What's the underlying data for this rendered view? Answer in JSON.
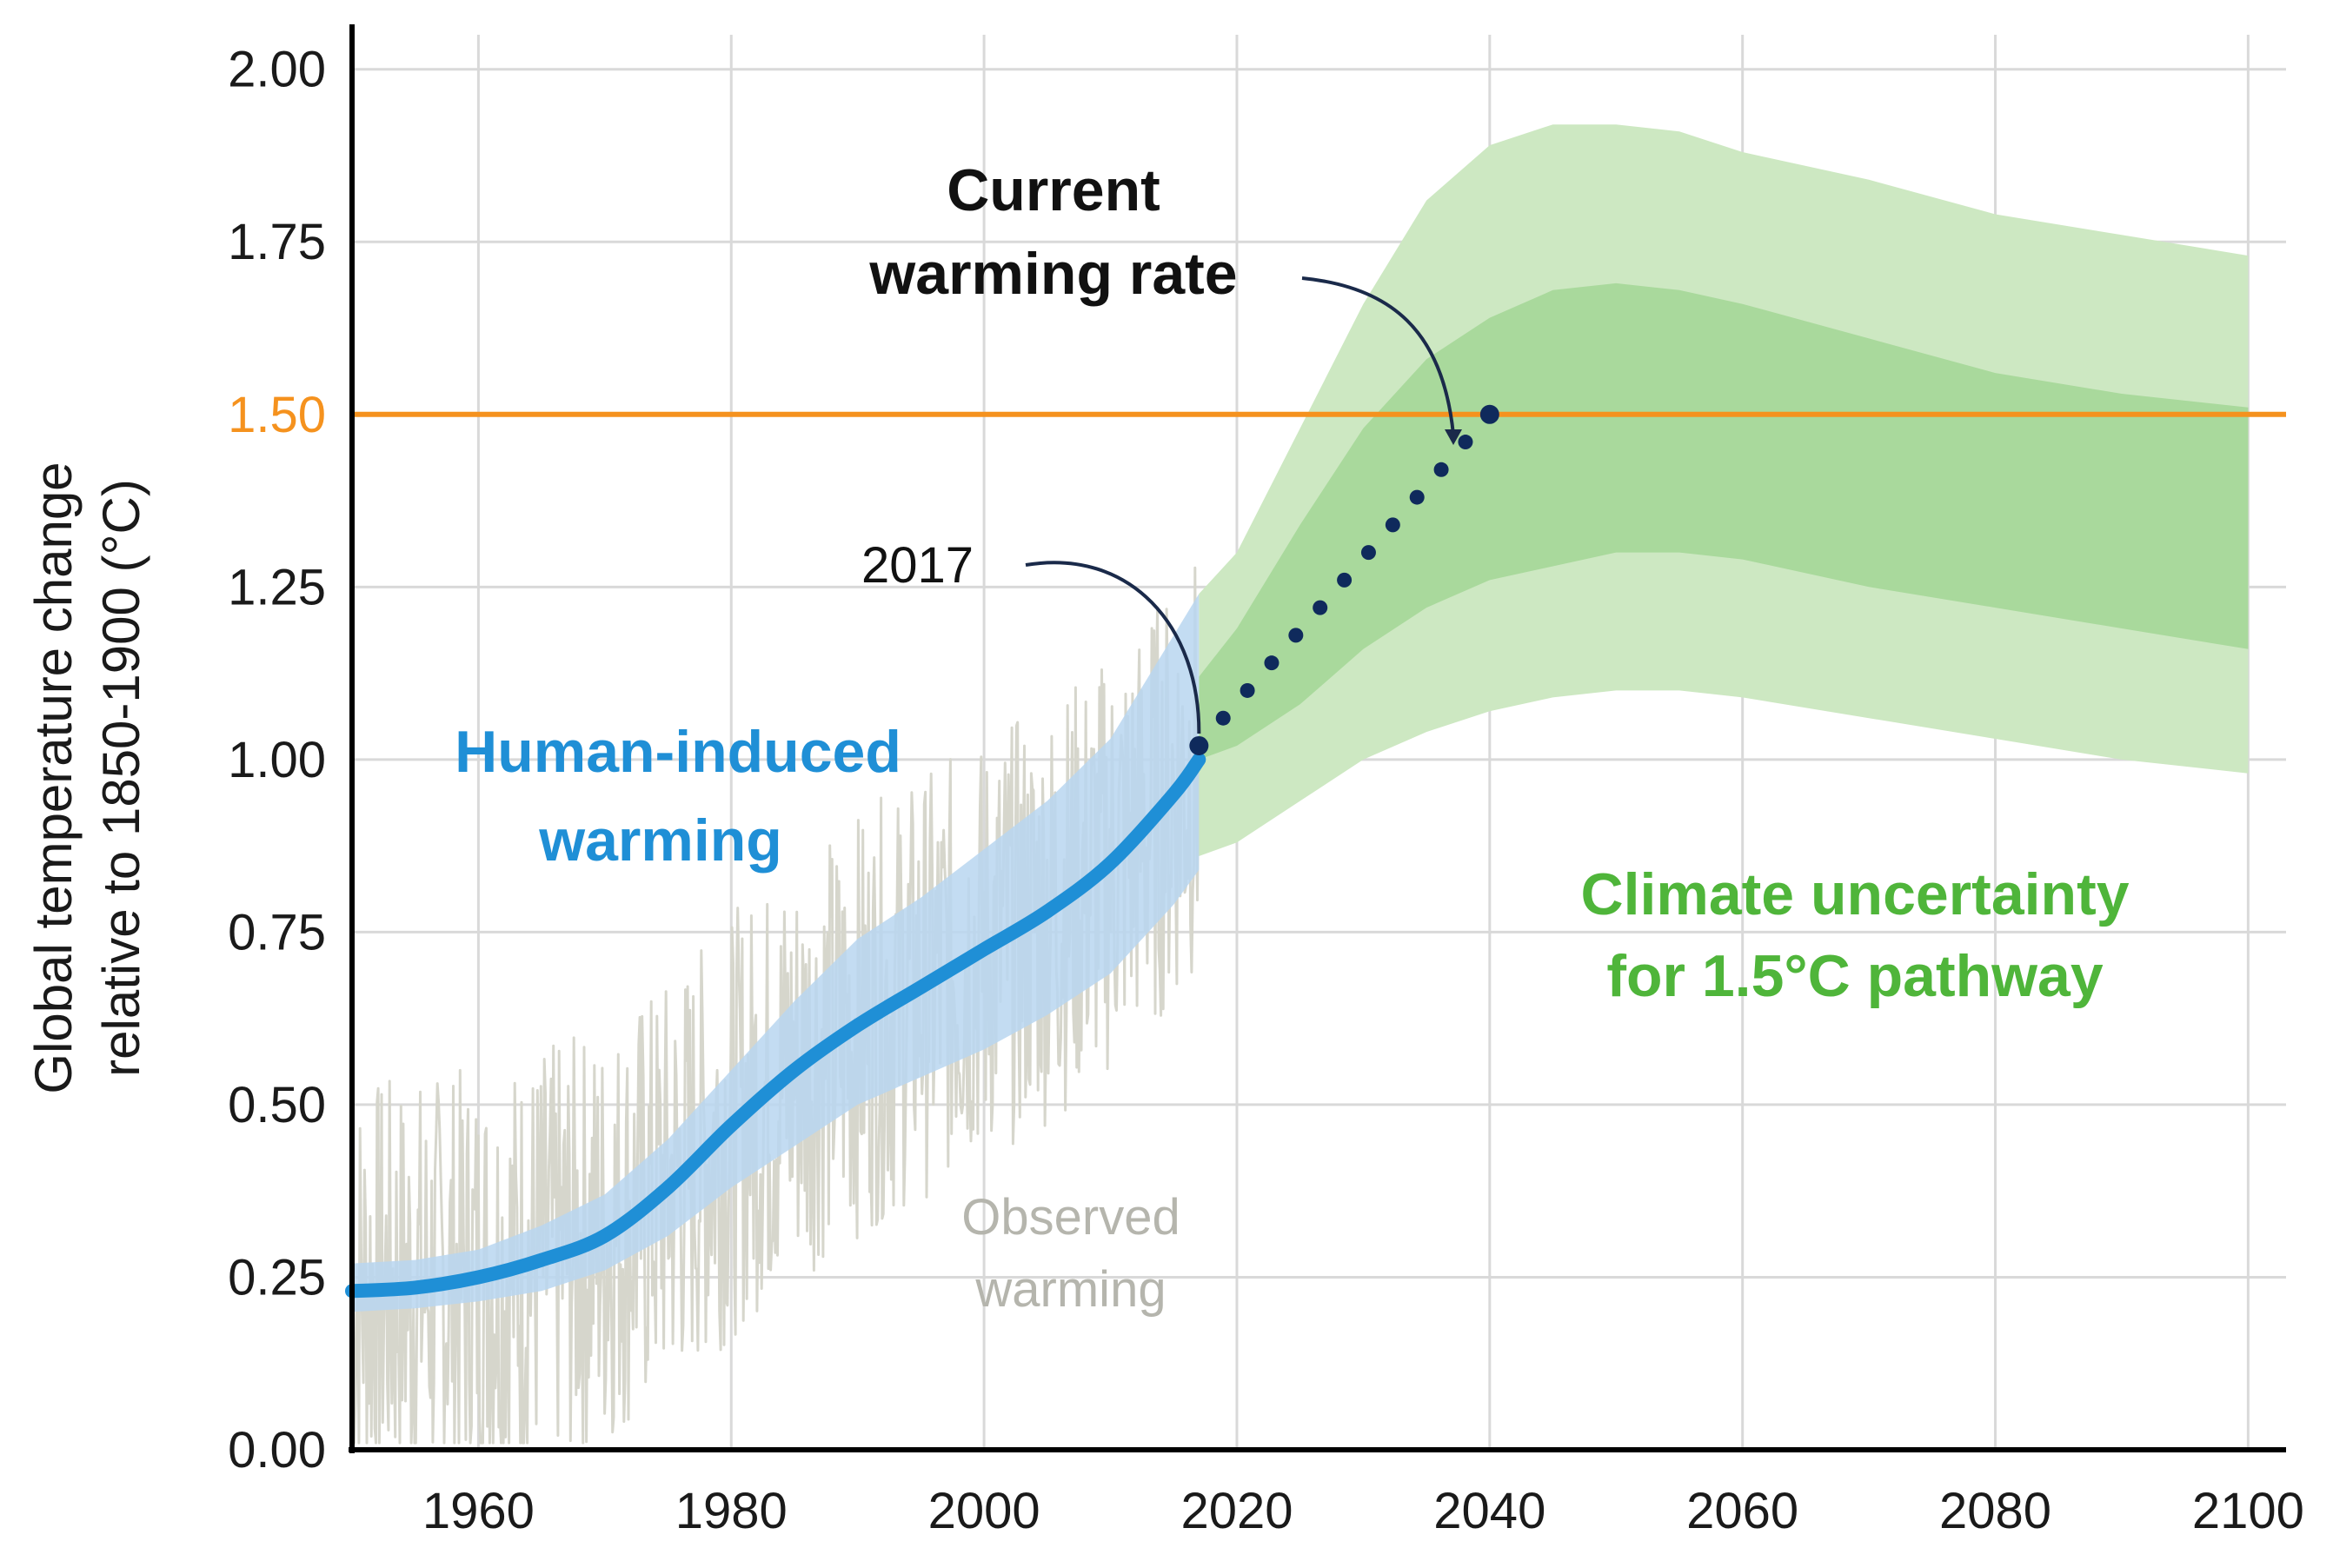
{
  "chart_data": {
    "type": "line",
    "title": "",
    "xlabel": "",
    "ylabel_lines": [
      "Global temperature change",
      "relative to 1850-1900 (°C)"
    ],
    "xlim": [
      1950,
      2103
    ],
    "ylim": [
      0,
      2.05
    ],
    "x_ticks": [
      1960,
      1980,
      2000,
      2020,
      2040,
      2060,
      2080,
      2100
    ],
    "y_ticks": [
      0.0,
      0.25,
      0.5,
      0.75,
      1.0,
      1.25,
      1.5,
      1.75,
      2.0
    ],
    "y_tick_labels": [
      "0.00",
      "0.25",
      "0.50",
      "0.75",
      "1.00",
      "1.25",
      "1.50",
      "1.75",
      "2.00"
    ],
    "highlight_tick": "1.50",
    "grid": true,
    "colors": {
      "human": "#1f8fd6",
      "human_band": "#b8d6f0",
      "observed": "#d6d6cc",
      "threshold": "#f5921e",
      "uncertainty_outer": "#cde8c2",
      "uncertainty_inner": "#a9d99c",
      "uncertainty_text": "#4fb53a",
      "observed_text": "#b5b5ad",
      "dots": "#0f2a5c",
      "axis": "#000000",
      "grid": "#d9d9d9"
    },
    "threshold": {
      "y": 1.5
    },
    "human_induced": {
      "name": "Human-induced warming",
      "x": [
        1950,
        1955,
        1960,
        1965,
        1970,
        1975,
        1980,
        1985,
        1990,
        1995,
        2000,
        2005,
        2010,
        2015,
        2017
      ],
      "y": [
        0.23,
        0.235,
        0.25,
        0.275,
        0.31,
        0.38,
        0.47,
        0.55,
        0.615,
        0.67,
        0.725,
        0.78,
        0.85,
        0.95,
        1.0
      ],
      "band_lower": [
        0.2,
        0.205,
        0.215,
        0.23,
        0.26,
        0.31,
        0.38,
        0.44,
        0.5,
        0.54,
        0.58,
        0.63,
        0.69,
        0.79,
        0.84
      ],
      "band_upper": [
        0.27,
        0.275,
        0.29,
        0.325,
        0.37,
        0.45,
        0.55,
        0.65,
        0.74,
        0.8,
        0.87,
        0.94,
        1.03,
        1.18,
        1.24
      ]
    },
    "observed": {
      "name": "Observed warming",
      "x_range": [
        1950,
        2017
      ]
    },
    "current_rate": {
      "name": "Current warming rate",
      "x_start": 2017,
      "y_start": 1.02,
      "x_end": 2040,
      "y_end": 1.5,
      "n_dots": 13
    },
    "uncertainty": {
      "name": "Climate uncertainty for 1.5°C pathway",
      "x": [
        2017,
        2020,
        2025,
        2030,
        2035,
        2040,
        2045,
        2050,
        2055,
        2060,
        2070,
        2080,
        2090,
        2100
      ],
      "outer_upper": [
        1.24,
        1.3,
        1.48,
        1.66,
        1.81,
        1.89,
        1.92,
        1.92,
        1.91,
        1.88,
        1.84,
        1.79,
        1.76,
        1.73
      ],
      "inner_upper": [
        1.12,
        1.19,
        1.34,
        1.48,
        1.58,
        1.64,
        1.68,
        1.69,
        1.68,
        1.66,
        1.61,
        1.56,
        1.53,
        1.51
      ],
      "inner_lower": [
        1.0,
        1.02,
        1.08,
        1.16,
        1.22,
        1.26,
        1.28,
        1.3,
        1.3,
        1.29,
        1.25,
        1.22,
        1.19,
        1.16
      ],
      "outer_lower": [
        0.86,
        0.88,
        0.94,
        1.0,
        1.04,
        1.07,
        1.09,
        1.1,
        1.1,
        1.09,
        1.06,
        1.03,
        1.0,
        0.98
      ]
    },
    "annotations": {
      "current_title": "Current",
      "current_sub": "warming rate",
      "year_label": "2017",
      "human_l1": "Human-induced",
      "human_l2": "warming",
      "observed_l1": "Observed",
      "observed_l2": "warming",
      "uncertainty_l1": "Climate uncertainty",
      "uncertainty_l2": "for 1.5°C pathway"
    }
  }
}
